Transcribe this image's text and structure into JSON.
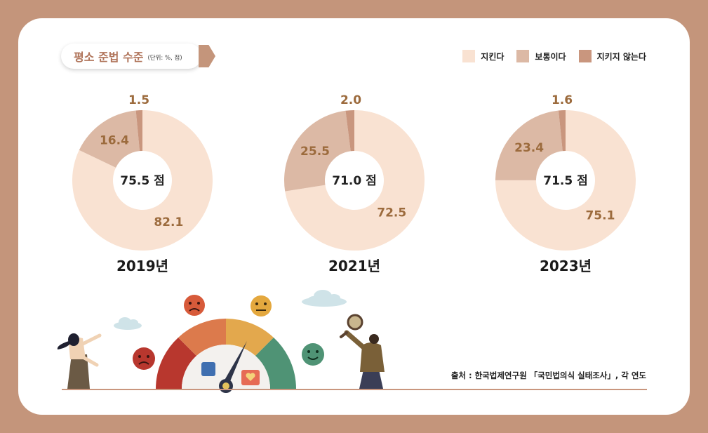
{
  "header": {
    "title": "평소 준법 수준",
    "unit": "(단위: %, 점)"
  },
  "colors": {
    "comply": "#f9e2d2",
    "normal": "#dcb9a5",
    "not_comply": "#c9967e",
    "background": "#c4957b"
  },
  "legend": [
    {
      "label": "지킨다",
      "color": "#f9e2d2"
    },
    {
      "label": "보통이다",
      "color": "#dcb9a5"
    },
    {
      "label": "지키지 않는다",
      "color": "#c9967e"
    }
  ],
  "chart_data": [
    {
      "type": "pie",
      "year_label": "2019년",
      "center_label": "75.5 점",
      "categories": [
        "지킨다",
        "보통이다",
        "지키지 않는다"
      ],
      "values": [
        82.1,
        16.4,
        1.5
      ]
    },
    {
      "type": "pie",
      "year_label": "2021년",
      "center_label": "71.0 점",
      "categories": [
        "지킨다",
        "보통이다",
        "지키지 않는다"
      ],
      "values": [
        72.5,
        25.5,
        2.0
      ]
    },
    {
      "type": "pie",
      "year_label": "2023년",
      "center_label": "71.5 점",
      "categories": [
        "지킨다",
        "보통이다",
        "지키지 않는다"
      ],
      "values": [
        75.1,
        23.4,
        1.6
      ]
    }
  ],
  "source": "출처 : 한국법제연구원 「국민법의식 실태조사」, 각 연도"
}
